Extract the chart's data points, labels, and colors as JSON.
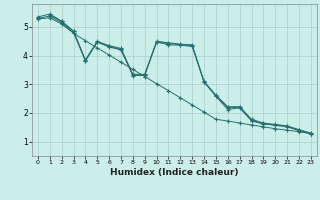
{
  "title": "",
  "xlabel": "Humidex (Indice chaleur)",
  "ylabel": "",
  "bg_color": "#cceee8",
  "grid_color": "#aacccc",
  "line_color": "#267070",
  "xlim": [
    -0.5,
    23.5
  ],
  "ylim": [
    0.5,
    5.8
  ],
  "yticks": [
    1,
    2,
    3,
    4,
    5
  ],
  "xticks": [
    0,
    1,
    2,
    3,
    4,
    5,
    6,
    7,
    8,
    9,
    10,
    11,
    12,
    13,
    14,
    15,
    16,
    17,
    18,
    19,
    20,
    21,
    22,
    23
  ],
  "lines": [
    {
      "x": [
        0,
        1,
        2,
        3,
        4,
        5,
        6,
        7,
        8,
        9,
        10,
        11,
        12,
        13,
        14,
        15,
        16,
        17,
        18,
        19,
        20,
        21,
        22,
        23
      ],
      "y": [
        5.35,
        5.45,
        5.2,
        4.85,
        3.85,
        4.5,
        4.35,
        4.25,
        3.35,
        3.35,
        4.5,
        4.45,
        4.4,
        4.38,
        3.1,
        2.62,
        2.22,
        2.22,
        1.78,
        1.65,
        1.6,
        1.55,
        1.42,
        1.3
      ]
    },
    {
      "x": [
        0,
        1,
        2,
        3,
        4,
        5,
        6,
        7,
        8,
        9,
        10,
        11,
        12,
        13,
        14,
        15,
        16,
        17,
        18,
        19,
        20,
        21,
        22,
        23
      ],
      "y": [
        5.3,
        5.38,
        5.15,
        4.8,
        3.82,
        4.47,
        4.3,
        4.2,
        3.3,
        3.32,
        4.47,
        4.38,
        4.36,
        4.32,
        3.08,
        2.58,
        2.12,
        2.18,
        1.72,
        1.62,
        1.57,
        1.52,
        1.38,
        1.27
      ]
    },
    {
      "x": [
        0,
        1,
        2,
        3,
        4,
        5,
        6,
        7,
        8,
        9,
        10,
        11,
        12,
        13,
        14,
        15,
        16,
        17,
        18,
        19,
        20,
        21,
        22,
        23
      ],
      "y": [
        5.28,
        5.32,
        5.1,
        4.78,
        4.52,
        4.27,
        4.02,
        3.77,
        3.52,
        3.27,
        3.02,
        2.78,
        2.53,
        2.28,
        2.03,
        1.78,
        1.72,
        1.65,
        1.58,
        1.52,
        1.45,
        1.4,
        1.35,
        1.28
      ]
    },
    {
      "x": [
        1,
        2,
        3,
        4,
        5,
        6,
        7,
        8,
        9,
        10,
        11,
        12,
        13,
        14,
        15,
        16,
        17,
        18,
        19,
        20,
        21,
        22,
        23
      ],
      "y": [
        5.42,
        5.2,
        4.85,
        3.82,
        4.48,
        4.32,
        4.22,
        3.32,
        3.32,
        4.48,
        4.42,
        4.38,
        4.35,
        3.08,
        2.6,
        2.18,
        2.2,
        1.75,
        1.63,
        1.58,
        1.53,
        1.4,
        1.28
      ]
    }
  ]
}
